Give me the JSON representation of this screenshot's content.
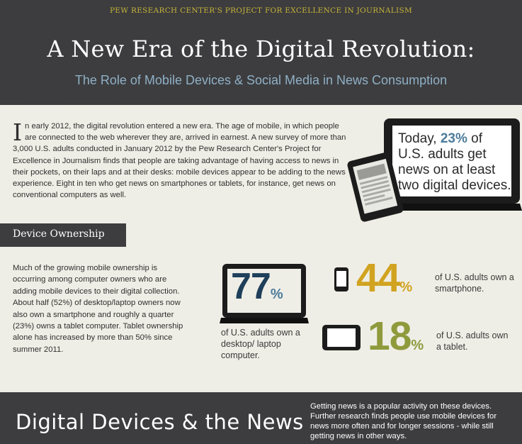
{
  "header": {
    "top_label": "PEW RESEARCH CENTER'S PROJECT FOR EXCELLENCE IN JOURNALISM",
    "title": "A New Era of the Digital Revolution:",
    "subtitle": "The Role of Mobile Devices & Social Media in News Consumption"
  },
  "intro": {
    "dropcap": "I",
    "text": "n early 2012, the digital revolution entered a new era. The age of mobile, in which people are connected to the web wherever they are, arrived in earnest.  A new survey of more than 3,000 U.S. adults conducted in January 2012 by the Pew Research Center's Project for Excellence in Journalism finds that people are taking advantage of having access to news in their pockets, on their laps and at their desks: mobile devices appear to be adding to the news experience. Eight in ten who get news on smartphones or tablets, for instance, get news on conventional computers as well."
  },
  "callout": {
    "prefix": "Today, ",
    "highlight": "23%",
    "suffix": " of U.S. adults get news on at least two digital devices."
  },
  "ownership": {
    "section_label": "Device Ownership",
    "text": "Much of the growing mobile ownership is occurring among computer owners who are adding mobile devices to their digital collection. About half (52%) of desktop/laptop owners now also own a smartphone and roughly a quarter (23%) owns a tablet computer.  Tablet ownership alone has increased by more than 50% since summer 2011."
  },
  "stats": {
    "computer": {
      "value": "77",
      "unit": "%",
      "caption": "of U.S. adults own a desktop/ laptop computer."
    },
    "smartphone": {
      "value": "44",
      "unit": "%",
      "caption": "of U.S. adults own a smartphone."
    },
    "tablet": {
      "value": "18",
      "unit": "%",
      "caption": "of U.S. adults own a tablet."
    }
  },
  "footer": {
    "title": "Digital Devices & the News",
    "text": "Getting news is a popular activity on these devices. Further research finds people use mobile devices for news more often and for longer sessions - while still getting news in other ways."
  },
  "colors": {
    "dark_band": "#3d3d3f",
    "gold": "#c6b338",
    "blue": "#4c7b9b",
    "amber": "#d1a321",
    "olive": "#8f9a3c"
  }
}
